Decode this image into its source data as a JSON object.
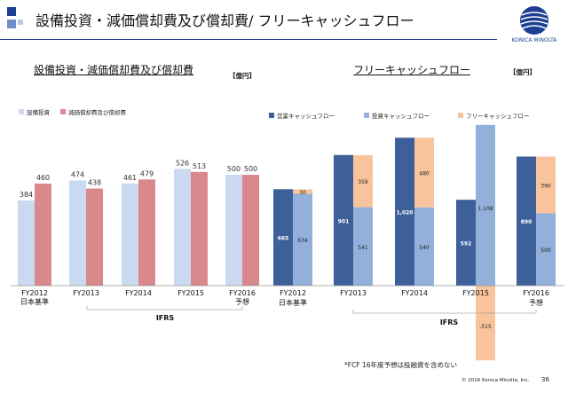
{
  "header": {
    "title": "設備投資・減価償却費及び償却費/ フリーキャッシュフロー",
    "logo_text": "KONICA MINOLTA",
    "brand_color": "#1c3f94"
  },
  "capex_chart": {
    "section_title": "設備投資・減価償却費及び償却費",
    "unit": "【億円】"
  },
  "fcf_chart": {
    "section_title": "フリーキャッシュフロー",
    "unit": "【億円】"
  },
  "chart_data": [
    {
      "type": "bar",
      "title": "設備投資・減価償却費及び償却費",
      "unit": "【億円】",
      "categories": [
        "FY2012",
        "FY2013",
        "FY2014",
        "FY2015",
        "FY2016"
      ],
      "category_sublabels": [
        "日本基準",
        "",
        "",
        "",
        "予想"
      ],
      "group_label": "IFRS",
      "series": [
        {
          "name": "設備投資",
          "color": "#c9d9f0",
          "values": [
            384,
            474,
            461,
            526,
            500
          ]
        },
        {
          "name": "減価償却費及び償却費",
          "color": "#d9898c",
          "values": [
            460,
            438,
            479,
            513,
            500
          ]
        }
      ],
      "ylim": [
        0,
        600
      ]
    },
    {
      "type": "bar",
      "title": "フリーキャッシュフロー",
      "unit": "【億円】",
      "categories": [
        "FY2012",
        "FY2013",
        "FY2014",
        "FY2015",
        "FY2016"
      ],
      "category_sublabels": [
        "日本基準",
        "",
        "",
        "",
        "予想"
      ],
      "group_label": "IFRS",
      "series": [
        {
          "name": "営業キャッシュフロー",
          "color": "#3d5f9a",
          "values": [
            665,
            901,
            1020,
            592,
            890
          ]
        },
        {
          "name": "投資キャッシュフロー",
          "color": "#92b0d9",
          "values": [
            634,
            541,
            540,
            1108,
            500
          ]
        },
        {
          "name": "フリーキャッシュフロー",
          "color": "#f9c49c",
          "values": [
            30,
            359,
            480,
            -515,
            390
          ]
        }
      ],
      "ylim": [
        -1000,
        1300
      ]
    }
  ],
  "footnote": "*FCF 16年度予想は投融資を含めない",
  "copyright": "© 2016 Konica Minolta, Inc.",
  "page_number": "36"
}
